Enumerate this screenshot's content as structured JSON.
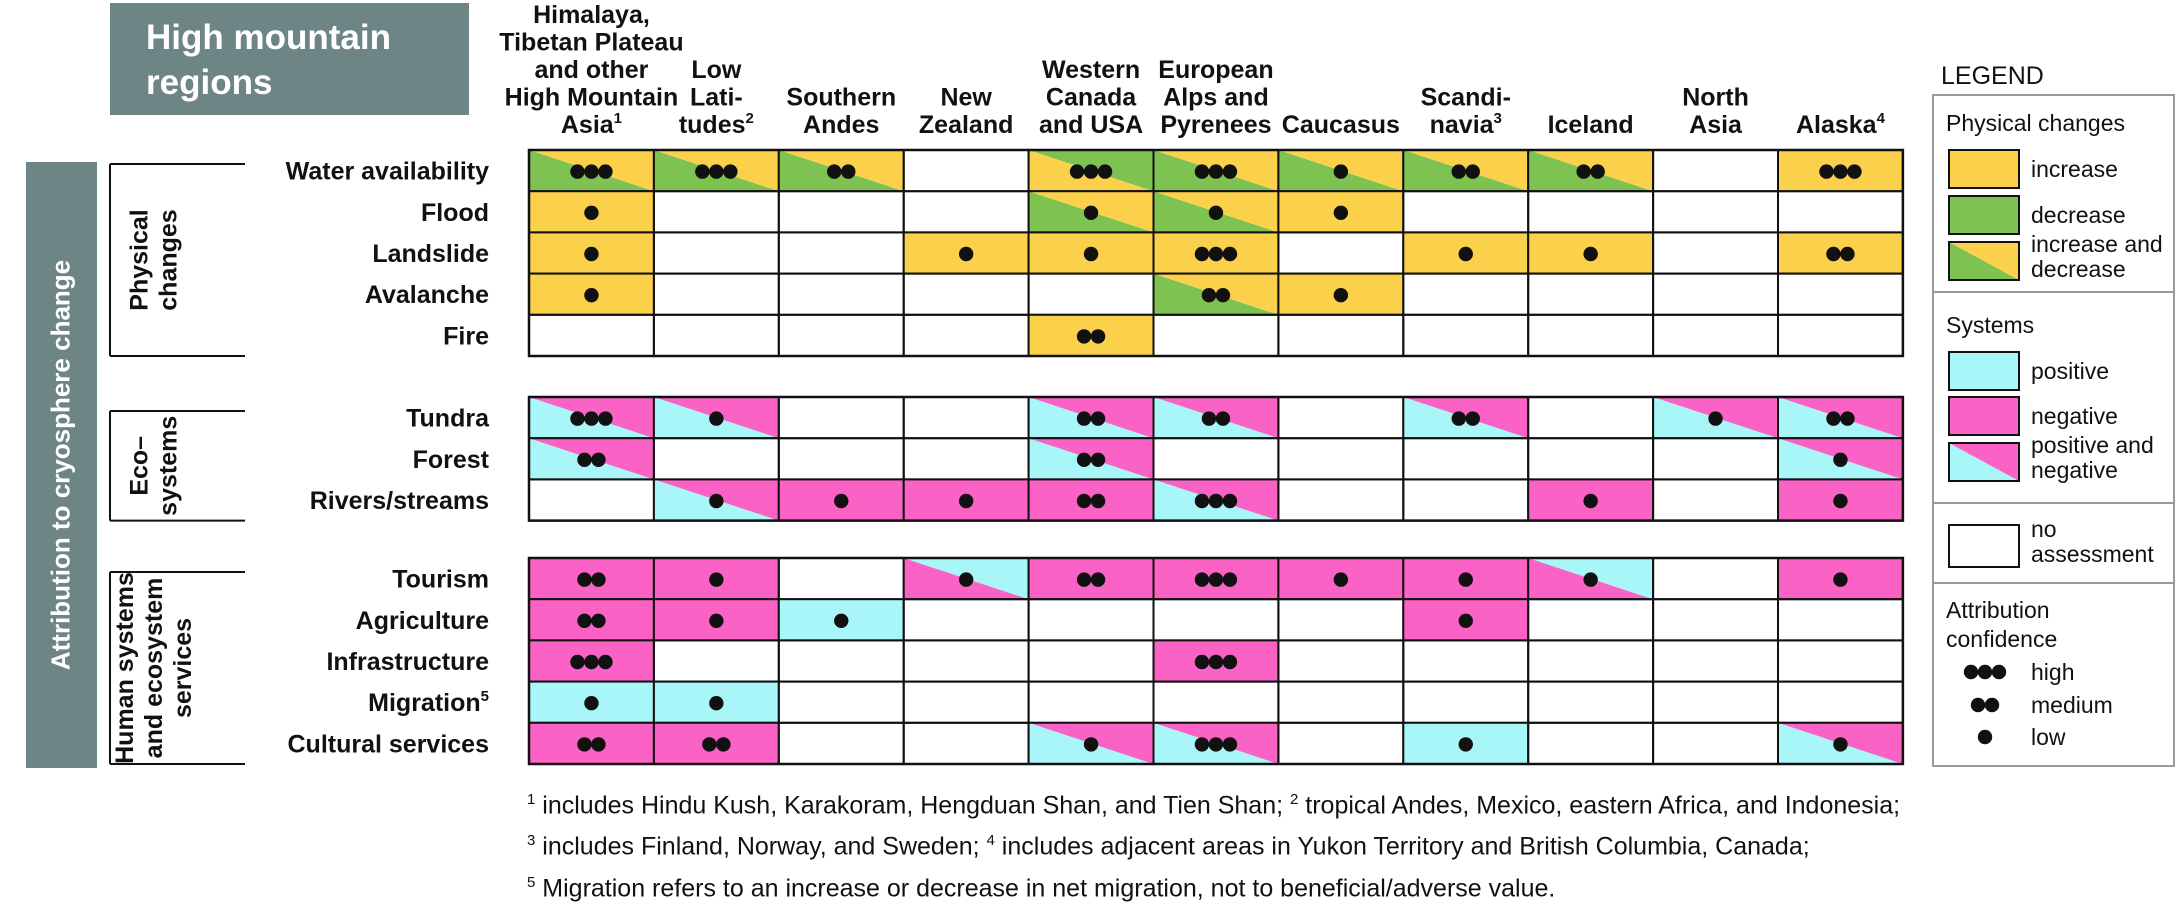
{
  "title": [
    "High mountain",
    "regions"
  ],
  "attribution_label": "Attribution to cryosphere change",
  "colors": {
    "increase": "#fbd04a",
    "decrease": "#7ec251",
    "positive": "#a8f6f8",
    "negative": "#fb62c6",
    "header_bg": "#6e8585",
    "dot": "#111111"
  },
  "regions": [
    {
      "lines": [
        "Himalaya,",
        "Tibetan Plateau",
        "and other",
        "High Mountain",
        "Asia"
      ],
      "sup": "1"
    },
    {
      "lines": [
        "Low",
        "Lati-",
        "tudes"
      ],
      "sup": "2"
    },
    {
      "lines": [
        "Southern",
        "Andes"
      ],
      "sup": ""
    },
    {
      "lines": [
        "New",
        "Zealand"
      ],
      "sup": ""
    },
    {
      "lines": [
        "Western",
        "Canada",
        "and USA"
      ],
      "sup": ""
    },
    {
      "lines": [
        "European",
        "Alps and",
        "Pyrenees"
      ],
      "sup": ""
    },
    {
      "lines": [
        "Caucasus"
      ],
      "sup": ""
    },
    {
      "lines": [
        "Scandi-",
        "navia"
      ],
      "sup": "3"
    },
    {
      "lines": [
        "Iceland"
      ],
      "sup": ""
    },
    {
      "lines": [
        "North",
        "Asia"
      ],
      "sup": ""
    },
    {
      "lines": [
        "Alaska"
      ],
      "sup": "4"
    }
  ],
  "groups": [
    {
      "label": [
        "Physical",
        "changes"
      ],
      "rows": [
        {
          "label": "Water availability",
          "sup": "",
          "cells": [
            "GY3",
            "GY3",
            "GY2",
            "",
            "YG3",
            "GY3",
            "GY1",
            "GY2",
            "GY2",
            "",
            "Y3"
          ]
        },
        {
          "label": "Flood",
          "sup": "",
          "cells": [
            "Y1",
            "",
            "",
            "",
            "GY1",
            "GY1",
            "Y1",
            "",
            "",
            "",
            ""
          ]
        },
        {
          "label": "Landslide",
          "sup": "",
          "cells": [
            "Y1",
            "",
            "",
            "Y1",
            "Y1",
            "Y3",
            "",
            "Y1",
            "Y1",
            "",
            "Y2"
          ]
        },
        {
          "label": "Avalanche",
          "sup": "",
          "cells": [
            "Y1",
            "",
            "",
            "",
            "",
            "GY2",
            "Y1",
            "",
            "",
            "",
            ""
          ]
        },
        {
          "label": "Fire",
          "sup": "",
          "cells": [
            "",
            "",
            "",
            "",
            "Y2",
            "",
            "",
            "",
            "",
            "",
            ""
          ]
        }
      ]
    },
    {
      "label": [
        "Eco–",
        "systems"
      ],
      "rows": [
        {
          "label": "Tundra",
          "sup": "",
          "cells": [
            "CM3",
            "CM1",
            "",
            "",
            "CM2",
            "CM2",
            "",
            "CM2",
            "",
            "CM1",
            "CM2"
          ]
        },
        {
          "label": "Forest",
          "sup": "",
          "cells": [
            "CM2",
            "",
            "",
            "",
            "CM2",
            "",
            "",
            "",
            "",
            "",
            "CM1"
          ]
        },
        {
          "label": "Rivers/streams",
          "sup": "",
          "cells": [
            "",
            "CM1",
            "M1",
            "M1",
            "M2",
            "CM3",
            "",
            "",
            "M1",
            "",
            "M1"
          ]
        }
      ]
    },
    {
      "label": [
        "Human systems",
        "and ecosystem",
        "services"
      ],
      "rows": [
        {
          "label": "Tourism",
          "sup": "",
          "cells": [
            "M2",
            "M1",
            "",
            "MC1",
            "M2",
            "M3",
            "M1",
            "M1",
            "MC1",
            "",
            "M1"
          ]
        },
        {
          "label": "Agriculture",
          "sup": "",
          "cells": [
            "M2",
            "M1",
            "C1",
            "",
            "",
            "",
            "",
            "M1",
            "",
            "",
            ""
          ]
        },
        {
          "label": "Infrastructure",
          "sup": "",
          "cells": [
            "M3",
            "",
            "",
            "",
            "",
            "M3",
            "",
            "",
            "",
            "",
            ""
          ]
        },
        {
          "label": "Migration",
          "sup": "5",
          "cells": [
            "C1",
            "C1",
            "",
            "",
            "",
            "",
            "",
            "",
            "",
            "",
            ""
          ]
        },
        {
          "label": "Cultural services",
          "sup": "",
          "cells": [
            "M2",
            "M2",
            "",
            "",
            "CM1",
            "CM3",
            "",
            "C1",
            "",
            "",
            "CM1"
          ]
        }
      ]
    }
  ],
  "legend": {
    "title": "LEGEND",
    "physical": {
      "heading": "Physical changes",
      "items": [
        "increase",
        "decrease",
        "increase and decrease"
      ]
    },
    "systems": {
      "heading": "Systems",
      "items": [
        "positive",
        "negative",
        "positive and negative"
      ]
    },
    "no_assessment": "no assessment",
    "confidence": {
      "heading": [
        "Attribution",
        "confidence"
      ],
      "items": [
        "high",
        "medium",
        "low"
      ]
    }
  },
  "footnotes": {
    "line1": {
      "s1": "1",
      "t1": " includes Hindu Kush, Karakoram, Hengduan Shan, and Tien Shan; ",
      "s2": "2",
      "t2": " tropical Andes, Mexico, eastern Africa, and Indonesia;"
    },
    "line2": {
      "s1": "3",
      "t1": " includes Finland, Norway, and Sweden; ",
      "s2": "4",
      "t2": " includes adjacent areas in Yukon Territory and British Columbia, Canada;"
    },
    "line3": {
      "s1": "5",
      "t1": " Migration refers to an increase or decrease in net migration, not to beneficial/adverse value."
    }
  }
}
